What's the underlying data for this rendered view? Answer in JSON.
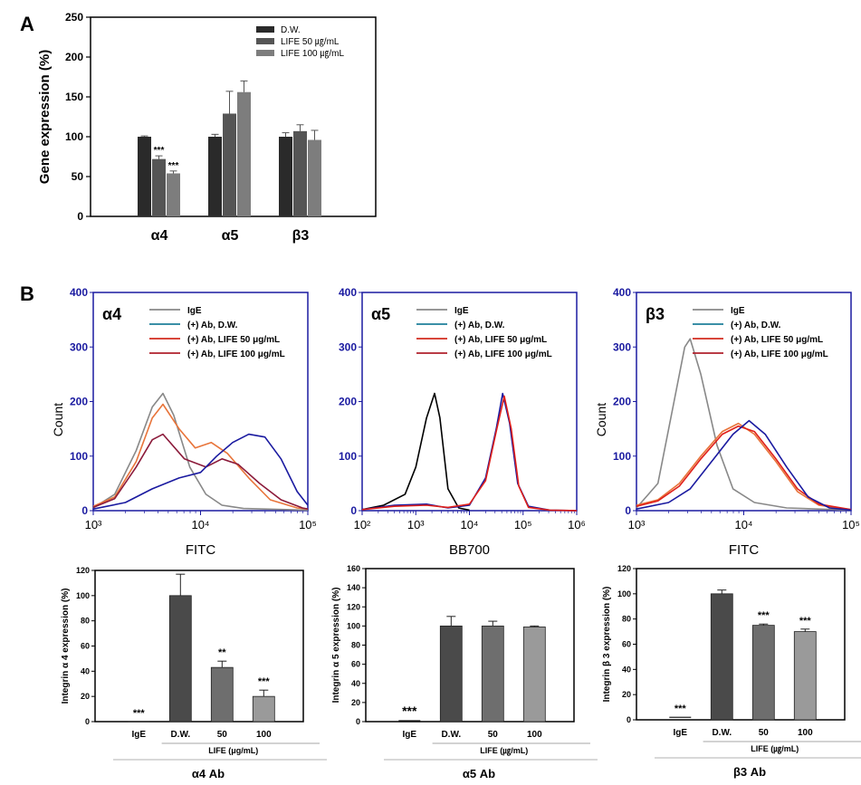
{
  "panels": {
    "a": "A",
    "b": "B"
  },
  "colors": {
    "dw": "#2a2a2a",
    "life50": "#555555",
    "life100": "#7d7d7d",
    "bar_dw": "#4a4a4a",
    "bar_50": "#6e6e6e",
    "bar_100": "#9a9a9a",
    "flow_axis": "#1a1aa0",
    "igE": "#888888",
    "dw_line": "#1e7f9a",
    "life50_line": "#d32b1e",
    "life100_line": "#b0202c",
    "orange": "#e8743a",
    "navy": "#1a1aa0",
    "black": "#000000",
    "maroon": "#8b1a3a",
    "red": "#e0201a"
  },
  "chart_data": [
    {
      "id": "gene",
      "type": "bar",
      "ylabel": "Gene expression (%)",
      "ylim": [
        0,
        250
      ],
      "yticks": [
        0,
        50,
        100,
        150,
        200,
        250
      ],
      "categories": [
        "α4",
        "α5",
        "β3"
      ],
      "series": [
        {
          "name": "D.W.",
          "values": [
            100,
            100,
            100
          ],
          "errors": [
            1,
            3,
            5
          ],
          "sig": [
            "",
            "",
            ""
          ]
        },
        {
          "name": "LIFE 50 ㎍/mL",
          "values": [
            72,
            129,
            107
          ],
          "errors": [
            4,
            28,
            8
          ],
          "sig": [
            "***",
            "",
            ""
          ]
        },
        {
          "name": "LIFE 100 ㎍/mL",
          "values": [
            54,
            156,
            96
          ],
          "errors": [
            3,
            14,
            12
          ],
          "sig": [
            "***",
            "",
            ""
          ]
        }
      ]
    },
    {
      "id": "flow_a4",
      "type": "line",
      "label": "α4",
      "ylabel": "Count",
      "xlabel": "FITC",
      "ylim": [
        0,
        400
      ],
      "yticks": [
        0,
        100,
        200,
        300,
        400
      ],
      "xlog": [
        3,
        5
      ],
      "xticks": [
        "10³",
        "10⁴",
        "10⁵"
      ],
      "legend": [
        "IgE",
        "(+) Ab, D.W.",
        "(+) Ab, LIFE 50 μg/mL",
        "(+) Ab, LIFE 100 μg/mL"
      ],
      "series": [
        {
          "name": "IgE",
          "color": "#888888",
          "points": [
            [
              3,
              5
            ],
            [
              3.2,
              30
            ],
            [
              3.4,
              110
            ],
            [
              3.55,
              190
            ],
            [
              3.65,
              215
            ],
            [
              3.75,
              175
            ],
            [
              3.9,
              80
            ],
            [
              4.05,
              30
            ],
            [
              4.2,
              10
            ],
            [
              4.4,
              4
            ],
            [
              5,
              1
            ]
          ]
        },
        {
          "name": "orange",
          "color": "#e8743a",
          "points": [
            [
              3,
              8
            ],
            [
              3.2,
              25
            ],
            [
              3.4,
              90
            ],
            [
              3.55,
              170
            ],
            [
              3.65,
              195
            ],
            [
              3.8,
              150
            ],
            [
              3.95,
              115
            ],
            [
              4.1,
              125
            ],
            [
              4.25,
              105
            ],
            [
              4.45,
              60
            ],
            [
              4.65,
              20
            ],
            [
              4.9,
              5
            ],
            [
              5,
              3
            ]
          ]
        },
        {
          "name": "maroon",
          "color": "#8b1a3a",
          "points": [
            [
              3,
              6
            ],
            [
              3.2,
              22
            ],
            [
              3.4,
              80
            ],
            [
              3.55,
              130
            ],
            [
              3.65,
              140
            ],
            [
              3.85,
              95
            ],
            [
              4.05,
              80
            ],
            [
              4.2,
              95
            ],
            [
              4.35,
              85
            ],
            [
              4.55,
              50
            ],
            [
              4.75,
              20
            ],
            [
              4.95,
              5
            ],
            [
              5,
              3
            ]
          ]
        },
        {
          "name": "navy",
          "color": "#1a1aa0",
          "points": [
            [
              3,
              3
            ],
            [
              3.3,
              15
            ],
            [
              3.55,
              40
            ],
            [
              3.8,
              60
            ],
            [
              4.0,
              70
            ],
            [
              4.15,
              100
            ],
            [
              4.3,
              125
            ],
            [
              4.45,
              140
            ],
            [
              4.6,
              135
            ],
            [
              4.75,
              95
            ],
            [
              4.9,
              35
            ],
            [
              5,
              10
            ]
          ]
        }
      ]
    },
    {
      "id": "flow_a5",
      "type": "line",
      "label": "α5",
      "ylabel": "",
      "xlabel": "BB700",
      "ylim": [
        0,
        400
      ],
      "yticks": [
        0,
        100,
        200,
        300,
        400
      ],
      "xlog": [
        2,
        6
      ],
      "xticks": [
        "10²",
        "10³",
        "10⁴",
        "10⁵",
        "10⁶"
      ],
      "legend": [
        "IgE",
        "(+) Ab, D.W.",
        "(+) Ab, LIFE 50 μg/mL",
        "(+) Ab, LIFE 100 μg/mL"
      ],
      "series": [
        {
          "name": "black",
          "color": "#000000",
          "points": [
            [
              2,
              2
            ],
            [
              2.4,
              10
            ],
            [
              2.8,
              30
            ],
            [
              3.0,
              80
            ],
            [
              3.2,
              170
            ],
            [
              3.35,
              215
            ],
            [
              3.45,
              170
            ],
            [
              3.6,
              40
            ],
            [
              3.8,
              5
            ],
            [
              4,
              1
            ]
          ]
        },
        {
          "name": "navy",
          "color": "#1a1aa0",
          "points": [
            [
              2,
              2
            ],
            [
              2.6,
              10
            ],
            [
              3.2,
              12
            ],
            [
              3.6,
              5
            ],
            [
              4.0,
              10
            ],
            [
              4.3,
              60
            ],
            [
              4.5,
              150
            ],
            [
              4.62,
              215
            ],
            [
              4.75,
              160
            ],
            [
              4.9,
              50
            ],
            [
              5.1,
              8
            ],
            [
              5.5,
              1
            ],
            [
              6,
              0
            ]
          ]
        },
        {
          "name": "red",
          "color": "#e0201a",
          "points": [
            [
              2,
              2
            ],
            [
              2.6,
              8
            ],
            [
              3.2,
              10
            ],
            [
              3.6,
              6
            ],
            [
              4.0,
              12
            ],
            [
              4.3,
              55
            ],
            [
              4.5,
              145
            ],
            [
              4.65,
              210
            ],
            [
              4.78,
              150
            ],
            [
              4.92,
              45
            ],
            [
              5.1,
              6
            ],
            [
              5.5,
              1
            ],
            [
              6,
              0
            ]
          ]
        }
      ]
    },
    {
      "id": "flow_b3",
      "type": "line",
      "label": "β3",
      "ylabel": "Count",
      "xlabel": "FITC",
      "ylim": [
        0,
        400
      ],
      "yticks": [
        0,
        100,
        200,
        300,
        400
      ],
      "xlog": [
        3,
        5
      ],
      "xticks": [
        "10³",
        "10⁴",
        "10⁵"
      ],
      "legend": [
        "IgE",
        "(+) Ab, D.W.",
        "(+) Ab, LIFE 50 μg/mL",
        "(+) Ab, LIFE 100 μg/mL"
      ],
      "series": [
        {
          "name": "IgE",
          "color": "#888888",
          "points": [
            [
              3,
              5
            ],
            [
              3.2,
              50
            ],
            [
              3.35,
              200
            ],
            [
              3.45,
              300
            ],
            [
              3.5,
              315
            ],
            [
              3.6,
              250
            ],
            [
              3.75,
              120
            ],
            [
              3.9,
              40
            ],
            [
              4.1,
              15
            ],
            [
              4.4,
              5
            ],
            [
              5,
              1
            ]
          ]
        },
        {
          "name": "orange",
          "color": "#e8743a",
          "points": [
            [
              3,
              10
            ],
            [
              3.2,
              20
            ],
            [
              3.4,
              50
            ],
            [
              3.6,
              100
            ],
            [
              3.8,
              145
            ],
            [
              3.95,
              160
            ],
            [
              4.1,
              140
            ],
            [
              4.3,
              90
            ],
            [
              4.5,
              35
            ],
            [
              4.7,
              10
            ],
            [
              5,
              2
            ]
          ]
        },
        {
          "name": "red",
          "color": "#e0201a",
          "points": [
            [
              3,
              8
            ],
            [
              3.2,
              18
            ],
            [
              3.4,
              45
            ],
            [
              3.6,
              95
            ],
            [
              3.8,
              140
            ],
            [
              3.95,
              155
            ],
            [
              4.1,
              145
            ],
            [
              4.3,
              95
            ],
            [
              4.5,
              40
            ],
            [
              4.7,
              12
            ],
            [
              5,
              2
            ]
          ]
        },
        {
          "name": "navy",
          "color": "#1a1aa0",
          "points": [
            [
              3,
              3
            ],
            [
              3.3,
              15
            ],
            [
              3.5,
              40
            ],
            [
              3.7,
              90
            ],
            [
              3.9,
              140
            ],
            [
              4.05,
              165
            ],
            [
              4.2,
              140
            ],
            [
              4.4,
              80
            ],
            [
              4.6,
              25
            ],
            [
              4.8,
              5
            ],
            [
              5,
              1
            ]
          ]
        }
      ]
    },
    {
      "id": "int_a4",
      "type": "bar",
      "ylabel": "Integrin α 4 expression (%)",
      "ylim": [
        0,
        120
      ],
      "yticks": [
        0,
        20,
        40,
        60,
        80,
        100,
        120
      ],
      "categories": [
        "IgE",
        "D.W.",
        "50",
        "100"
      ],
      "values": [
        0,
        100,
        43,
        20
      ],
      "errors": [
        0,
        17,
        5,
        5
      ],
      "sig": [
        "***",
        "",
        "**",
        "***"
      ],
      "group_label": "LIFE (μg/mL)",
      "ab_label": "α4 Ab"
    },
    {
      "id": "int_a5",
      "type": "bar",
      "ylabel": "Integrin α 5 expression (%)",
      "ylim": [
        0,
        160
      ],
      "yticks": [
        0,
        20,
        40,
        60,
        80,
        100,
        120,
        140,
        160
      ],
      "categories": [
        "IgE",
        "D.W.",
        "50",
        "100"
      ],
      "values": [
        1,
        100,
        100,
        99
      ],
      "errors": [
        0,
        10,
        5,
        1
      ],
      "sig": [
        "***",
        "",
        "",
        ""
      ],
      "group_label": "LIFE (㎍/mL)",
      "ab_label": "α5 Ab"
    },
    {
      "id": "int_b3",
      "type": "bar",
      "ylabel": "Integrin β 3 expression (%)",
      "ylim": [
        0,
        120
      ],
      "yticks": [
        0,
        20,
        40,
        60,
        80,
        100,
        120
      ],
      "categories": [
        "IgE",
        "D.W.",
        "50",
        "100"
      ],
      "values": [
        2,
        100,
        75,
        70
      ],
      "errors": [
        0,
        3,
        1,
        2
      ],
      "sig": [
        "***",
        "",
        "***",
        "***"
      ],
      "group_label": "LIFE (㎍/mL)",
      "ab_label": "β3 Ab"
    }
  ]
}
